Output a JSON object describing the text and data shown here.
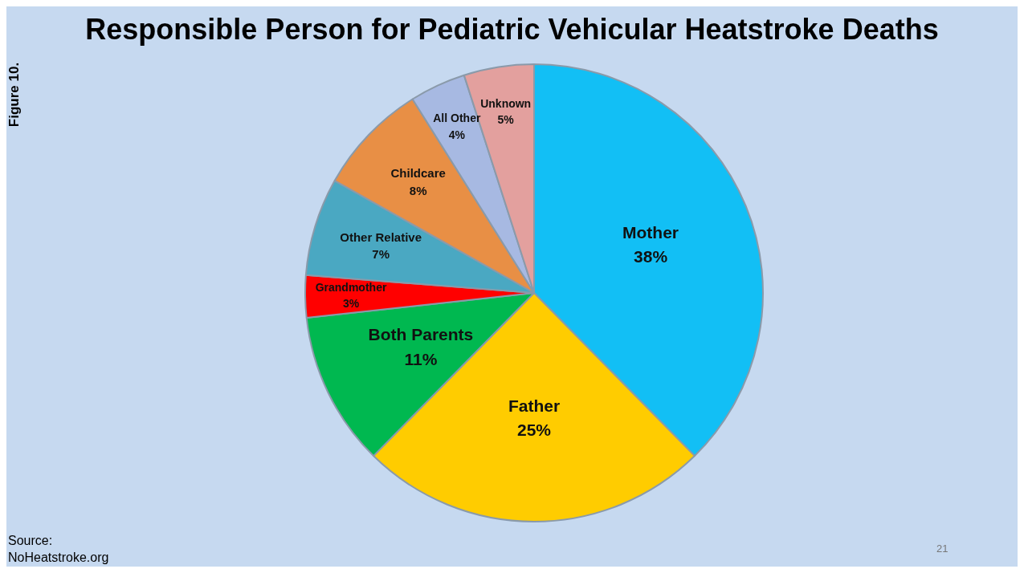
{
  "chart_data": {
    "type": "pie",
    "title": "Responsible Person for Pediatric Vehicular Heatstroke Deaths",
    "categories": [
      "Mother",
      "Father",
      "Both Parents",
      "Grandmother",
      "Other Relative",
      "Childcare",
      "All Other",
      "Unknown"
    ],
    "values": [
      38,
      25,
      11,
      3,
      7,
      8,
      4,
      5
    ],
    "value_labels": [
      "38%",
      "25%",
      "11%",
      "3%",
      "7%",
      "8%",
      "4%",
      "5%"
    ],
    "colors": [
      "#12bff5",
      "#ffcc00",
      "#00b850",
      "#ff0000",
      "#4aa8c2",
      "#e88f45",
      "#a7b9e2",
      "#e3a09e"
    ],
    "legend": false,
    "annotations": [
      "Figure 10.",
      "Source:\nNoHeatstroke.org",
      "21"
    ]
  }
}
